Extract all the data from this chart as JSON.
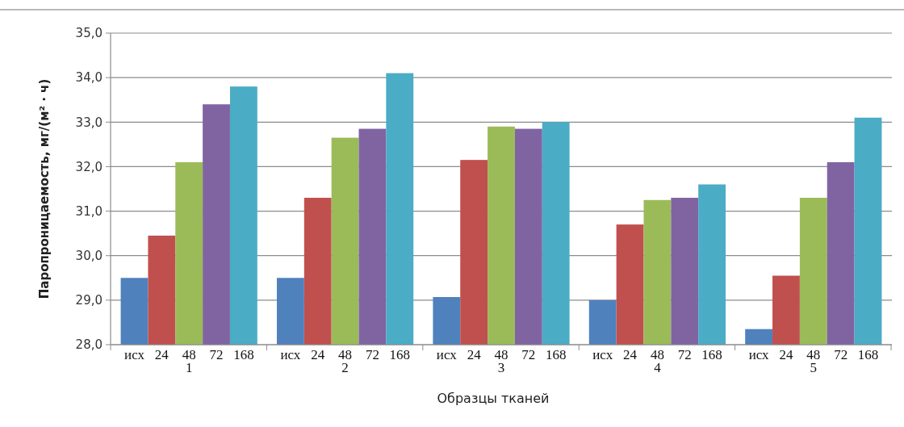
{
  "chart_data": {
    "type": "bar",
    "xlabel": "Образцы тканей",
    "ylabel": "Паропроницаемость,  мг/(м² · ч)",
    "categories": [
      "1",
      "2",
      "3",
      "4",
      "5"
    ],
    "series": [
      {
        "name": "исх",
        "color": "#4f81bd",
        "values": [
          29.5,
          29.5,
          29.07,
          29.0,
          28.35
        ]
      },
      {
        "name": "24",
        "color": "#c0504d",
        "values": [
          30.45,
          31.3,
          32.15,
          30.7,
          29.55
        ]
      },
      {
        "name": "48",
        "color": "#9bbb59",
        "values": [
          32.1,
          32.65,
          32.9,
          31.25,
          31.3
        ]
      },
      {
        "name": "72",
        "color": "#8064a2",
        "values": [
          33.4,
          32.85,
          32.85,
          31.3,
          32.1
        ]
      },
      {
        "name": "168",
        "color": "#4bacc6",
        "values": [
          33.8,
          34.1,
          33.0,
          31.6,
          33.1
        ]
      }
    ],
    "ylim": [
      28,
      35
    ],
    "yticks": [
      {
        "value": 28,
        "label": "28,0"
      },
      {
        "value": 29,
        "label": "29,0"
      },
      {
        "value": 30,
        "label": "30,0"
      },
      {
        "value": 31,
        "label": "31,0"
      },
      {
        "value": 32,
        "label": "32,0"
      },
      {
        "value": 33,
        "label": "33,0"
      },
      {
        "value": 34,
        "label": "34,0"
      },
      {
        "value": 35,
        "label": "35,0"
      }
    ],
    "grid": "y"
  }
}
